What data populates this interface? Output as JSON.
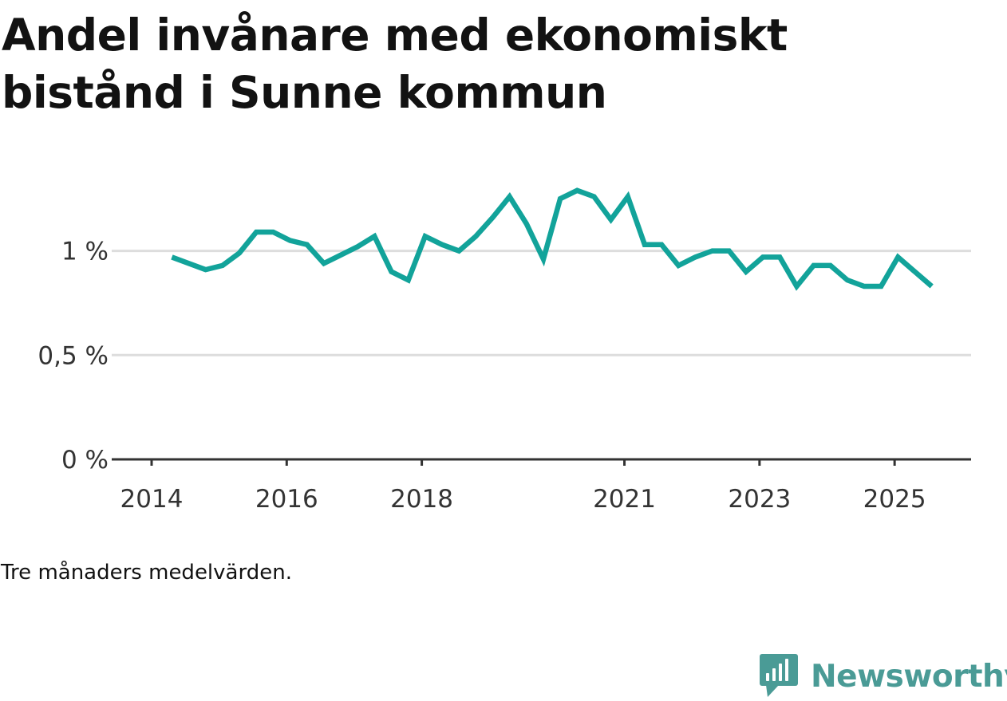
{
  "chart_data": {
    "type": "line",
    "title": "Andel invånare med ekonomiskt bistånd i Sunne kommun",
    "caption": "Tre månaders medelvärden.",
    "brand": "Newsworthy",
    "xlabel": "",
    "ylabel": "",
    "ylim": [
      0,
      1.4
    ],
    "xlim": [
      2014.0,
      2026.2
    ],
    "y_ticks": [
      {
        "value": 0,
        "label": "0 %"
      },
      {
        "value": 0.5,
        "label": "0,5 %"
      },
      {
        "value": 1.0,
        "label": "1 %"
      }
    ],
    "x_ticks": [
      {
        "value": 2014.0,
        "label": "2014"
      },
      {
        "value": 2016.0,
        "label": "2016"
      },
      {
        "value": 2018.0,
        "label": "2018"
      },
      {
        "value": 2021.0,
        "label": "2021"
      },
      {
        "value": 2023.0,
        "label": "2023"
      },
      {
        "value": 2025.0,
        "label": "2025"
      }
    ],
    "colors": {
      "line": "#12a39a",
      "grid": "#dddddd",
      "axis": "#333333"
    },
    "series": [
      {
        "name": "Andel invånare med ekonomiskt bistånd",
        "x": [
          2014.3,
          2014.55,
          2014.8,
          2015.05,
          2015.3,
          2015.55,
          2015.8,
          2016.05,
          2016.3,
          2016.55,
          2016.8,
          2017.05,
          2017.3,
          2017.55,
          2017.8,
          2018.05,
          2018.3,
          2018.55,
          2018.8,
          2019.05,
          2019.3,
          2019.55,
          2019.8,
          2020.05,
          2020.3,
          2020.55,
          2020.8,
          2021.05,
          2021.3,
          2021.55,
          2021.8,
          2022.05,
          2022.3,
          2022.55,
          2022.8,
          2023.05,
          2023.3,
          2023.55,
          2023.8,
          2024.05,
          2024.3,
          2024.55,
          2024.8,
          2025.05,
          2025.3,
          2025.55
        ],
        "values": [
          0.97,
          0.94,
          0.91,
          0.93,
          0.99,
          1.09,
          1.09,
          1.05,
          1.03,
          0.94,
          0.98,
          1.02,
          1.07,
          0.9,
          0.86,
          1.07,
          1.03,
          1.0,
          1.07,
          1.16,
          1.26,
          1.13,
          0.96,
          1.25,
          1.29,
          1.26,
          1.15,
          1.26,
          1.03,
          1.03,
          0.93,
          0.97,
          1.0,
          1.0,
          0.9,
          0.97,
          0.97,
          0.83,
          0.93,
          0.93,
          0.86,
          0.83,
          0.83,
          0.97,
          0.9,
          0.83
        ]
      }
    ]
  }
}
